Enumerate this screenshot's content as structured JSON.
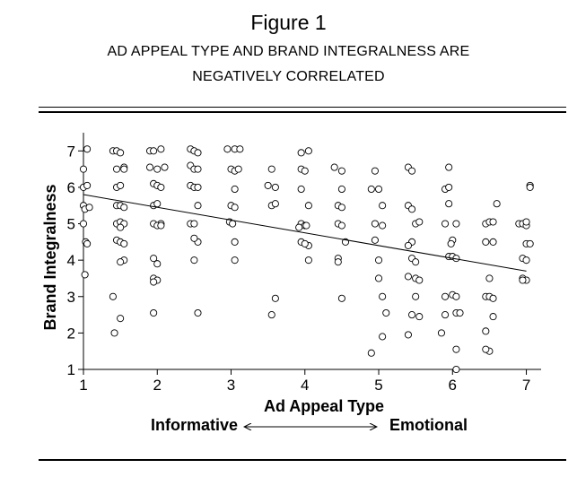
{
  "figure": {
    "label": "Figure 1",
    "subtitle_line1": "AD APPEAL TYPE AND BRAND INTEGRALNESS ARE",
    "subtitle_line2": "NEGATIVELY CORRELATED"
  },
  "chart_data": {
    "type": "scatter",
    "title": "",
    "xlabel": "Ad Appeal Type",
    "ylabel": "Brand Integralness",
    "xlim": [
      1,
      7.2
    ],
    "ylim": [
      1,
      7.5
    ],
    "xticks": [
      1,
      2,
      3,
      4,
      5,
      6,
      7
    ],
    "yticks": [
      1,
      2,
      3,
      4,
      5,
      6,
      7
    ],
    "grid": false,
    "x_anchor_left": "Informative",
    "x_anchor_right": "Emotional",
    "trendline": {
      "x": [
        1,
        7
      ],
      "y": [
        5.8,
        3.7
      ]
    },
    "points": [
      [
        1.0,
        6.5
      ],
      [
        1.05,
        7.05
      ],
      [
        1.0,
        6.0
      ],
      [
        1.05,
        6.05
      ],
      [
        1.0,
        5.5
      ],
      [
        1.02,
        5.4
      ],
      [
        1.08,
        5.45
      ],
      [
        1.0,
        5.0
      ],
      [
        1.03,
        4.5
      ],
      [
        1.05,
        4.45
      ],
      [
        1.02,
        3.6
      ],
      [
        1.4,
        7.0
      ],
      [
        1.45,
        7.0
      ],
      [
        1.5,
        6.95
      ],
      [
        1.45,
        6.5
      ],
      [
        1.55,
        6.55
      ],
      [
        1.55,
        6.5
      ],
      [
        1.45,
        6.0
      ],
      [
        1.5,
        6.05
      ],
      [
        1.45,
        5.5
      ],
      [
        1.5,
        5.5
      ],
      [
        1.55,
        5.45
      ],
      [
        1.45,
        5.0
      ],
      [
        1.5,
        5.05
      ],
      [
        1.55,
        5.0
      ],
      [
        1.5,
        4.9
      ],
      [
        1.45,
        4.55
      ],
      [
        1.5,
        4.5
      ],
      [
        1.55,
        4.45
      ],
      [
        1.55,
        4.0
      ],
      [
        1.5,
        3.95
      ],
      [
        1.4,
        3.0
      ],
      [
        1.5,
        2.4
      ],
      [
        1.42,
        2.0
      ],
      [
        1.9,
        7.0
      ],
      [
        1.95,
        7.0
      ],
      [
        2.05,
        7.05
      ],
      [
        1.9,
        6.55
      ],
      [
        2.0,
        6.5
      ],
      [
        2.1,
        6.55
      ],
      [
        1.95,
        6.1
      ],
      [
        2.0,
        6.05
      ],
      [
        2.05,
        6.0
      ],
      [
        1.95,
        5.5
      ],
      [
        2.0,
        5.55
      ],
      [
        1.95,
        5.0
      ],
      [
        2.05,
        5.0
      ],
      [
        2.0,
        4.95
      ],
      [
        2.05,
        4.95
      ],
      [
        1.95,
        4.05
      ],
      [
        2.0,
        3.9
      ],
      [
        1.95,
        3.5
      ],
      [
        2.0,
        3.45
      ],
      [
        1.95,
        3.4
      ],
      [
        1.95,
        2.55
      ],
      [
        2.45,
        7.05
      ],
      [
        2.5,
        7.0
      ],
      [
        2.55,
        6.95
      ],
      [
        2.45,
        6.6
      ],
      [
        2.5,
        6.5
      ],
      [
        2.55,
        6.5
      ],
      [
        2.45,
        6.05
      ],
      [
        2.5,
        6.0
      ],
      [
        2.55,
        6.0
      ],
      [
        2.55,
        5.5
      ],
      [
        2.45,
        5.0
      ],
      [
        2.5,
        5.0
      ],
      [
        2.55,
        4.5
      ],
      [
        2.5,
        4.6
      ],
      [
        2.5,
        4.0
      ],
      [
        2.55,
        2.55
      ],
      [
        2.95,
        7.05
      ],
      [
        3.05,
        7.05
      ],
      [
        3.12,
        7.05
      ],
      [
        3.0,
        6.5
      ],
      [
        3.05,
        6.45
      ],
      [
        3.1,
        6.5
      ],
      [
        3.05,
        5.95
      ],
      [
        3.0,
        5.5
      ],
      [
        3.05,
        5.45
      ],
      [
        2.98,
        5.05
      ],
      [
        3.02,
        5.0
      ],
      [
        3.05,
        4.5
      ],
      [
        3.05,
        4.0
      ],
      [
        3.5,
        6.05
      ],
      [
        3.55,
        6.5
      ],
      [
        3.6,
        6.0
      ],
      [
        3.55,
        5.5
      ],
      [
        3.6,
        5.55
      ],
      [
        3.6,
        2.95
      ],
      [
        3.55,
        2.5
      ],
      [
        3.95,
        6.95
      ],
      [
        4.05,
        7.0
      ],
      [
        3.95,
        6.5
      ],
      [
        4.0,
        6.45
      ],
      [
        3.95,
        5.95
      ],
      [
        4.05,
        5.5
      ],
      [
        3.95,
        5.0
      ],
      [
        4.0,
        4.95
      ],
      [
        3.92,
        4.9
      ],
      [
        4.02,
        4.95
      ],
      [
        3.95,
        4.5
      ],
      [
        4.05,
        4.4
      ],
      [
        4.0,
        4.45
      ],
      [
        4.05,
        4.0
      ],
      [
        4.4,
        6.55
      ],
      [
        4.5,
        6.45
      ],
      [
        4.5,
        5.95
      ],
      [
        4.45,
        5.5
      ],
      [
        4.5,
        5.45
      ],
      [
        4.45,
        5.0
      ],
      [
        4.5,
        4.95
      ],
      [
        4.55,
        4.5
      ],
      [
        4.45,
        4.05
      ],
      [
        4.45,
        3.95
      ],
      [
        4.5,
        2.95
      ],
      [
        4.95,
        6.45
      ],
      [
        4.9,
        5.95
      ],
      [
        5.0,
        5.95
      ],
      [
        5.05,
        5.5
      ],
      [
        4.95,
        5.0
      ],
      [
        5.05,
        4.95
      ],
      [
        4.95,
        4.55
      ],
      [
        5.0,
        4.0
      ],
      [
        5.0,
        3.5
      ],
      [
        5.05,
        3.0
      ],
      [
        5.1,
        2.55
      ],
      [
        5.05,
        1.9
      ],
      [
        4.9,
        1.45
      ],
      [
        5.4,
        6.55
      ],
      [
        5.45,
        6.45
      ],
      [
        5.4,
        5.5
      ],
      [
        5.45,
        5.4
      ],
      [
        5.5,
        5.0
      ],
      [
        5.55,
        5.05
      ],
      [
        5.45,
        4.5
      ],
      [
        5.4,
        4.4
      ],
      [
        5.45,
        4.05
      ],
      [
        5.5,
        3.95
      ],
      [
        5.4,
        3.55
      ],
      [
        5.5,
        3.5
      ],
      [
        5.55,
        3.45
      ],
      [
        5.5,
        3.0
      ],
      [
        5.45,
        2.5
      ],
      [
        5.55,
        2.45
      ],
      [
        5.4,
        1.95
      ],
      [
        5.95,
        6.55
      ],
      [
        5.9,
        5.95
      ],
      [
        5.95,
        6.0
      ],
      [
        5.95,
        5.55
      ],
      [
        5.9,
        5.0
      ],
      [
        6.05,
        5.0
      ],
      [
        6.0,
        4.55
      ],
      [
        5.95,
        4.1
      ],
      [
        5.98,
        4.45
      ],
      [
        6.0,
        4.1
      ],
      [
        6.05,
        4.05
      ],
      [
        5.9,
        3.0
      ],
      [
        6.0,
        3.05
      ],
      [
        6.05,
        3.0
      ],
      [
        5.9,
        2.5
      ],
      [
        6.05,
        2.55
      ],
      [
        6.1,
        2.55
      ],
      [
        6.05,
        1.55
      ],
      [
        6.05,
        1.0
      ],
      [
        5.85,
        2.0
      ],
      [
        6.45,
        5.0
      ],
      [
        6.5,
        5.05
      ],
      [
        6.55,
        5.05
      ],
      [
        6.45,
        4.5
      ],
      [
        6.55,
        4.5
      ],
      [
        6.6,
        5.55
      ],
      [
        6.5,
        3.5
      ],
      [
        6.45,
        3.0
      ],
      [
        6.5,
        3.0
      ],
      [
        6.55,
        2.95
      ],
      [
        6.55,
        2.45
      ],
      [
        6.45,
        2.05
      ],
      [
        6.5,
        1.5
      ],
      [
        6.45,
        1.55
      ],
      [
        6.9,
        5.0
      ],
      [
        6.95,
        5.0
      ],
      [
        7.0,
        4.95
      ],
      [
        7.05,
        6.05
      ],
      [
        7.05,
        6.0
      ],
      [
        7.0,
        5.05
      ],
      [
        7.0,
        4.45
      ],
      [
        6.95,
        4.05
      ],
      [
        7.05,
        4.45
      ],
      [
        7.0,
        4.0
      ],
      [
        6.95,
        3.5
      ],
      [
        7.0,
        3.45
      ],
      [
        6.95,
        3.45
      ]
    ]
  }
}
